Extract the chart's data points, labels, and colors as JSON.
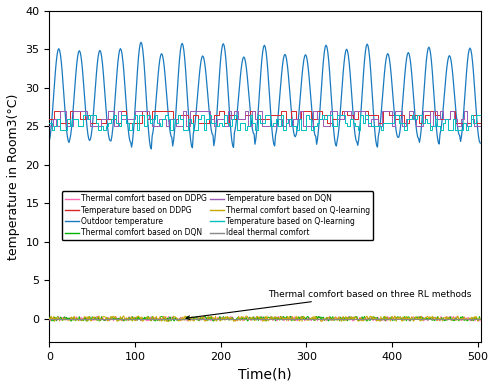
{
  "title": "",
  "xlabel": "Time(h)",
  "ylabel": "temperature in Room3(°C)",
  "xlim": [
    0,
    504
  ],
  "ylim": [
    -3,
    40
  ],
  "yticks": [
    0,
    5,
    10,
    15,
    20,
    25,
    30,
    35,
    40
  ],
  "xticks": [
    0,
    100,
    200,
    300,
    400,
    500
  ],
  "n_points": 504,
  "outdoor_color": "#1a7abf",
  "temp_ddpg_color": "#d62728",
  "temp_dqn_color": "#9b59b6",
  "temp_qlearn_color": "#00c0c0",
  "comfort_ddpg_color": "#ff69b4",
  "comfort_dqn_color": "#00b300",
  "comfort_qlearn_color": "#c8a800",
  "ideal_color": "#888888",
  "annotation_text": "Thermal comfort based on three RL methods"
}
